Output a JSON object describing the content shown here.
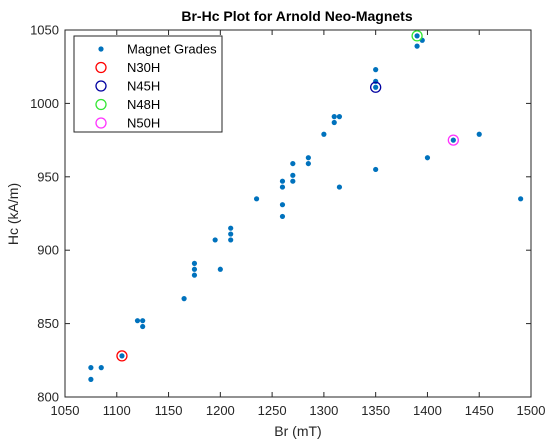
{
  "chart_data": {
    "type": "scatter",
    "title": "Br-Hc Plot for Arnold Neo-Magnets",
    "xlabel": "Br (mT)",
    "ylabel": "Hc (kA/m)",
    "xlim": [
      1050,
      1500
    ],
    "ylim": [
      800,
      1050
    ],
    "xticks": [
      1050,
      1100,
      1150,
      1200,
      1250,
      1300,
      1350,
      1400,
      1450,
      1500
    ],
    "yticks": [
      800,
      850,
      900,
      950,
      1000,
      1050
    ],
    "grid": false,
    "legend_location": "top-left",
    "series": [
      {
        "name": "Magnet Grades",
        "marker": "filled-dot",
        "color": "#0072BD",
        "points": [
          {
            "x": 1075,
            "y": 812
          },
          {
            "x": 1075,
            "y": 820
          },
          {
            "x": 1085,
            "y": 820
          },
          {
            "x": 1105,
            "y": 828
          },
          {
            "x": 1120,
            "y": 852
          },
          {
            "x": 1125,
            "y": 852
          },
          {
            "x": 1125,
            "y": 848
          },
          {
            "x": 1165,
            "y": 867
          },
          {
            "x": 1175,
            "y": 883
          },
          {
            "x": 1175,
            "y": 887
          },
          {
            "x": 1175,
            "y": 891
          },
          {
            "x": 1195,
            "y": 907
          },
          {
            "x": 1200,
            "y": 887
          },
          {
            "x": 1210,
            "y": 907
          },
          {
            "x": 1210,
            "y": 911
          },
          {
            "x": 1210,
            "y": 915
          },
          {
            "x": 1235,
            "y": 935
          },
          {
            "x": 1260,
            "y": 923
          },
          {
            "x": 1260,
            "y": 931
          },
          {
            "x": 1260,
            "y": 943
          },
          {
            "x": 1260,
            "y": 947
          },
          {
            "x": 1270,
            "y": 947
          },
          {
            "x": 1270,
            "y": 951
          },
          {
            "x": 1270,
            "y": 959
          },
          {
            "x": 1285,
            "y": 959
          },
          {
            "x": 1285,
            "y": 963
          },
          {
            "x": 1300,
            "y": 979
          },
          {
            "x": 1310,
            "y": 987
          },
          {
            "x": 1310,
            "y": 991
          },
          {
            "x": 1315,
            "y": 991
          },
          {
            "x": 1315,
            "y": 943
          },
          {
            "x": 1350,
            "y": 955
          },
          {
            "x": 1350,
            "y": 1011
          },
          {
            "x": 1350,
            "y": 1015
          },
          {
            "x": 1350,
            "y": 1023
          },
          {
            "x": 1390,
            "y": 1039
          },
          {
            "x": 1390,
            "y": 1046
          },
          {
            "x": 1395,
            "y": 1043
          },
          {
            "x": 1400,
            "y": 963
          },
          {
            "x": 1425,
            "y": 975
          },
          {
            "x": 1450,
            "y": 979
          },
          {
            "x": 1490,
            "y": 935
          }
        ]
      },
      {
        "name": "N30H",
        "marker": "open-circle",
        "color": "#FF0000",
        "points": [
          {
            "x": 1105,
            "y": 828
          }
        ]
      },
      {
        "name": "N45H",
        "marker": "open-circle",
        "color": "#0000A0",
        "points": [
          {
            "x": 1350,
            "y": 1011
          }
        ]
      },
      {
        "name": "N48H",
        "marker": "open-circle",
        "color": "#33E633",
        "points": [
          {
            "x": 1390,
            "y": 1046
          }
        ]
      },
      {
        "name": "N50H",
        "marker": "open-circle",
        "color": "#FF33FF",
        "points": [
          {
            "x": 1425,
            "y": 975
          }
        ]
      }
    ]
  }
}
